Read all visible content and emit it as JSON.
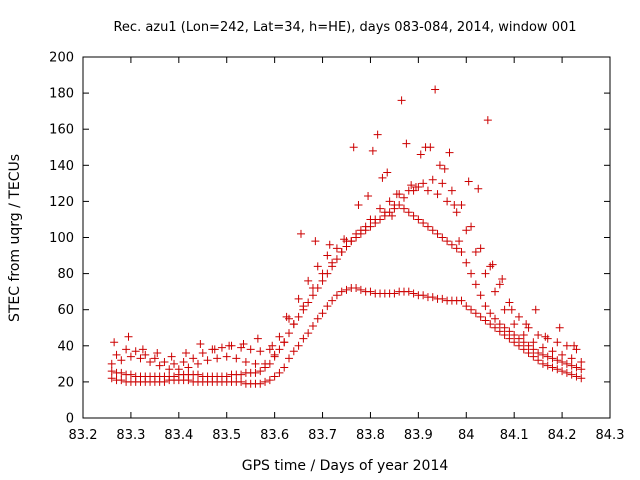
{
  "chart_data": {
    "type": "scatter",
    "title": "Rec. azu1 (Lon=242, Lat=34, h=HE), days 083-084, 2014, window 001",
    "xlabel": "GPS time / Days of year 2014",
    "ylabel": "STEC from uqrg / TECUs",
    "xlim": [
      83.2,
      84.3
    ],
    "ylim": [
      0,
      200
    ],
    "x_ticks": [
      83.2,
      83.3,
      83.4,
      83.5,
      83.6,
      83.7,
      83.8,
      83.9,
      84.0,
      84.1,
      84.2,
      84.3
    ],
    "x_tick_labels": [
      "83.2",
      "83.3",
      "83.4",
      "83.5",
      "83.6",
      "83.7",
      "83.8",
      "83.9",
      "84",
      "84.1",
      "84.2",
      "84.3"
    ],
    "y_ticks": [
      0,
      20,
      40,
      60,
      80,
      100,
      120,
      140,
      160,
      180,
      200
    ],
    "y_tick_labels": [
      "0",
      "20",
      "40",
      "60",
      "80",
      "100",
      "120",
      "140",
      "160",
      "180",
      "200"
    ],
    "grid": false,
    "marker": "plus",
    "color": "#cc0000",
    "series": [
      {
        "x": [
          83.26,
          83.27,
          83.28,
          83.29,
          83.3,
          83.31,
          83.32,
          83.33,
          83.34,
          83.35,
          83.36,
          83.37,
          83.38,
          83.39,
          83.4,
          83.41,
          83.42,
          83.43,
          83.44,
          83.45,
          83.46,
          83.47,
          83.48,
          83.49,
          83.5,
          83.51,
          83.52,
          83.53,
          83.54,
          83.55,
          83.56,
          83.57,
          83.58,
          83.59,
          83.6,
          83.61,
          83.62,
          83.63,
          83.64,
          83.65,
          83.66,
          83.67,
          83.68,
          83.69,
          83.7,
          83.71,
          83.72,
          83.73,
          83.74,
          83.75,
          83.76,
          83.77,
          83.78,
          83.79,
          83.8,
          83.81,
          83.82,
          83.83,
          83.84,
          83.85,
          83.86,
          83.87,
          83.88,
          83.89,
          83.9,
          83.91,
          83.92,
          83.93,
          83.94,
          83.95,
          83.96,
          83.97,
          83.98,
          83.99,
          84.0,
          84.01,
          84.02,
          84.03,
          84.04,
          84.05,
          84.06,
          84.07,
          84.08,
          84.09,
          84.1,
          84.11,
          84.12,
          84.13,
          84.14,
          84.15,
          84.16,
          84.17,
          84.18,
          84.19,
          84.2,
          84.21,
          84.22,
          84.23,
          84.24
        ],
        "y": [
          22,
          21,
          21,
          20,
          20,
          20,
          20,
          20,
          20,
          20,
          20,
          20,
          21,
          21,
          21,
          21,
          21,
          20,
          20,
          20,
          20,
          20,
          20,
          20,
          20,
          20,
          20,
          20,
          19,
          19,
          19,
          19,
          20,
          21,
          23,
          25,
          28,
          33,
          37,
          40,
          44,
          47,
          51,
          55,
          58,
          62,
          65,
          68,
          70,
          71,
          72,
          72,
          71,
          70,
          70,
          69,
          69,
          69,
          69,
          69,
          70,
          70,
          70,
          69,
          68,
          68,
          67,
          67,
          66,
          66,
          65,
          65,
          65,
          65,
          62,
          60,
          58,
          56,
          54,
          52,
          50,
          48,
          46,
          44,
          42,
          40,
          38,
          36,
          34,
          32,
          30,
          29,
          28,
          27,
          26,
          25,
          24,
          23,
          22
        ]
      },
      {
        "x": [
          83.26,
          83.27,
          83.28,
          83.29,
          83.3,
          83.31,
          83.32,
          83.33,
          83.34,
          83.35,
          83.36,
          83.37,
          83.38,
          83.39,
          83.4,
          83.41,
          83.42,
          83.43,
          83.44,
          83.45,
          83.46,
          83.47,
          83.48,
          83.49,
          83.5,
          83.51,
          83.52,
          83.53,
          83.54,
          83.55,
          83.56,
          83.57,
          83.58,
          83.59,
          83.6,
          83.61,
          83.62,
          83.63,
          83.64,
          83.65,
          83.66,
          83.67,
          83.68,
          83.69,
          83.7,
          83.71,
          83.72,
          83.73,
          83.74,
          83.75,
          83.76,
          83.77,
          83.78,
          83.79,
          83.8,
          83.81,
          83.82,
          83.83,
          83.84,
          83.85,
          83.86,
          83.87,
          83.88,
          83.89,
          83.9,
          83.91,
          83.92,
          83.93,
          83.94,
          83.95,
          83.96,
          83.97,
          83.98,
          83.99,
          84.0,
          84.01,
          84.02,
          84.03,
          84.04,
          84.05,
          84.06,
          84.07,
          84.08,
          84.09,
          84.1,
          84.11,
          84.12,
          84.13,
          84.14,
          84.15,
          84.16,
          84.17,
          84.18,
          84.19,
          84.2,
          84.21,
          84.22,
          84.23,
          84.24
        ],
        "y": [
          26,
          25,
          25,
          24,
          24,
          23,
          23,
          23,
          23,
          23,
          23,
          23,
          23,
          23,
          24,
          24,
          24,
          24,
          24,
          23,
          23,
          23,
          23,
          23,
          23,
          24,
          24,
          24,
          25,
          25,
          25,
          26,
          28,
          30,
          34,
          38,
          42,
          47,
          52,
          56,
          60,
          64,
          68,
          72,
          76,
          80,
          84,
          88,
          92,
          95,
          98,
          100,
          102,
          104,
          106,
          108,
          110,
          112,
          114,
          116,
          118,
          116,
          114,
          112,
          110,
          108,
          106,
          104,
          102,
          100,
          98,
          96,
          94,
          92,
          86,
          80,
          74,
          68,
          62,
          58,
          55,
          52,
          50,
          48,
          46,
          44,
          42,
          40,
          38,
          36,
          35,
          34,
          33,
          32,
          31,
          30,
          29,
          28,
          27
        ]
      },
      {
        "x": [
          83.26,
          83.28,
          83.3,
          83.32,
          83.34,
          83.36,
          83.38,
          83.4,
          83.42,
          83.44,
          83.46,
          83.48,
          83.5,
          83.52,
          83.54,
          83.56,
          83.58,
          83.6,
          83.62,
          83.64,
          83.66,
          83.68,
          83.7,
          83.72,
          83.74,
          83.76,
          83.78,
          83.8,
          83.82,
          83.84,
          83.86,
          83.88,
          83.9,
          83.92,
          83.94,
          83.96,
          83.98,
          84.0,
          84.02,
          84.04,
          84.06,
          84.08,
          84.1,
          84.12,
          84.14,
          84.16,
          84.18,
          84.2,
          84.22,
          84.24
        ],
        "y": [
          30,
          32,
          34,
          33,
          31,
          29,
          27,
          27,
          28,
          30,
          32,
          33,
          34,
          33,
          31,
          30,
          30,
          35,
          42,
          52,
          62,
          72,
          80,
          86,
          92,
          98,
          104,
          110,
          116,
          120,
          124,
          126,
          128,
          126,
          124,
          120,
          114,
          104,
          92,
          80,
          70,
          60,
          52,
          46,
          42,
          39,
          37,
          35,
          33,
          31
        ]
      },
      {
        "x": [
          83.27,
          83.29,
          83.31,
          83.33,
          83.35,
          83.37,
          83.39,
          83.41,
          83.43,
          83.45,
          83.47,
          83.49,
          83.51,
          83.53,
          83.55,
          83.57,
          83.59,
          83.61,
          83.63,
          83.65,
          83.67,
          83.69,
          83.71,
          83.73,
          83.75,
          83.77,
          83.79,
          83.81,
          83.83,
          83.85,
          83.87,
          83.89,
          83.91,
          83.93,
          83.95,
          83.97,
          83.99,
          84.01,
          84.03,
          84.05,
          84.07,
          84.09,
          84.11,
          84.13,
          84.15,
          84.17,
          84.19,
          84.21,
          84.23
        ],
        "y": [
          35,
          38,
          37,
          35,
          33,
          31,
          30,
          31,
          33,
          36,
          38,
          39,
          40,
          39,
          38,
          37,
          38,
          45,
          55,
          66,
          76,
          84,
          90,
          94,
          98,
          102,
          106,
          110,
          114,
          118,
          122,
          126,
          130,
          132,
          130,
          126,
          118,
          106,
          94,
          84,
          74,
          64,
          56,
          50,
          46,
          44,
          42,
          40,
          38
        ]
      },
      {
        "x": [
          83.265,
          83.295,
          83.325,
          83.355,
          83.385,
          83.415,
          83.445,
          83.475,
          83.505,
          83.535,
          83.565,
          83.595,
          83.625,
          83.655,
          83.685,
          83.715,
          83.745,
          83.765,
          83.775,
          83.795,
          83.805,
          83.815,
          83.825,
          83.835,
          83.845,
          83.855,
          83.865,
          83.875,
          83.885,
          83.895,
          83.905,
          83.915,
          83.925,
          83.935,
          83.945,
          83.955,
          83.965,
          83.975,
          83.985,
          84.005,
          84.025,
          84.045,
          84.055,
          84.075,
          84.095,
          84.125,
          84.145,
          84.165,
          84.195,
          84.225
        ],
        "y": [
          42,
          45,
          38,
          36,
          34,
          36,
          41,
          38,
          40,
          41,
          44,
          40,
          56,
          102,
          98,
          96,
          99,
          150,
          118,
          123,
          148,
          157,
          133,
          136,
          112,
          124,
          176,
          152,
          129,
          128,
          146,
          150,
          150,
          182,
          140,
          138,
          147,
          118,
          98,
          131,
          127,
          165,
          85,
          77,
          60,
          52,
          60,
          45,
          50,
          40
        ]
      }
    ]
  }
}
